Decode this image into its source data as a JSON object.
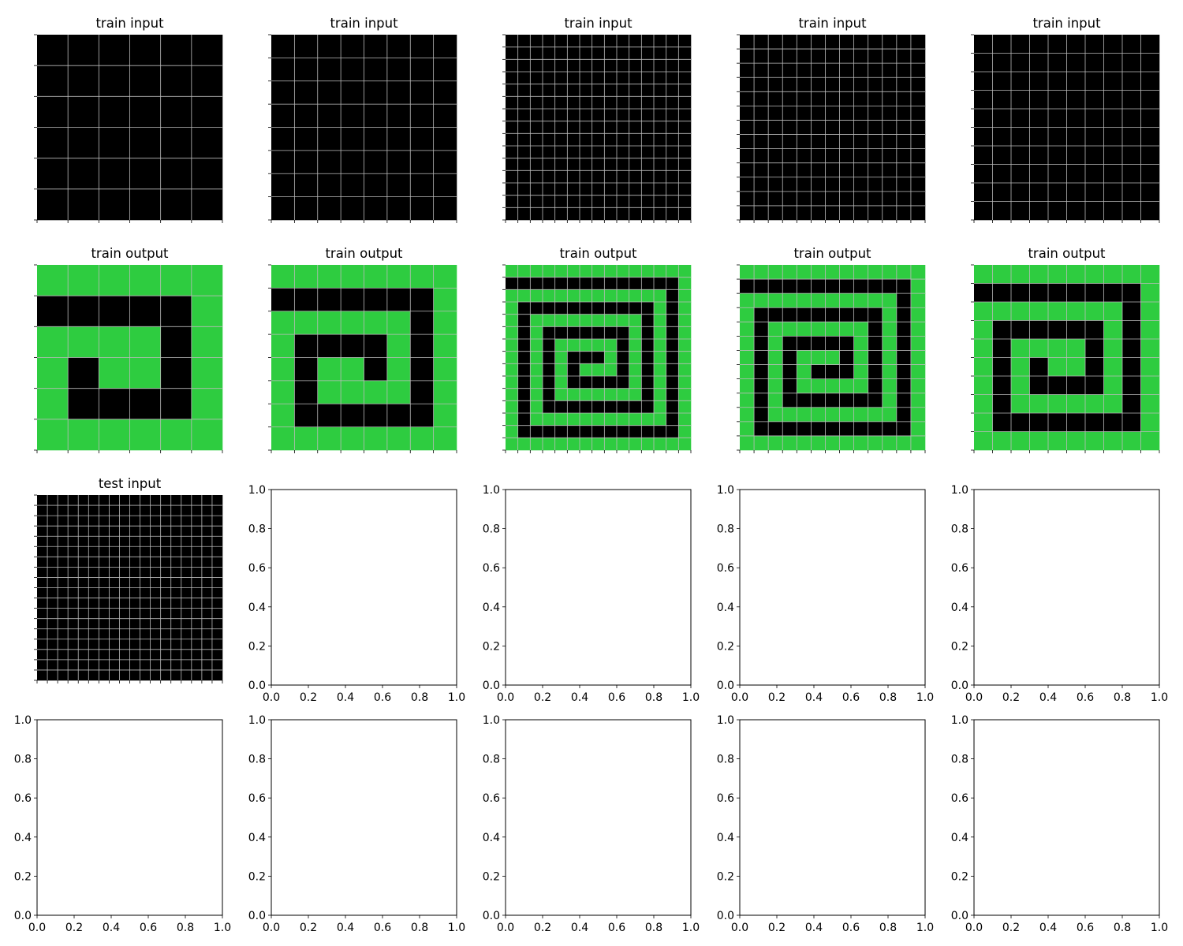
{
  "colors": {
    "black": "#000000",
    "green": "#2ECC40",
    "gridline": "#bbbbbb"
  },
  "chart_data": [
    {
      "type": "heatmap",
      "title": "train input",
      "rows": 6,
      "cols": 6,
      "values": "zeros"
    },
    {
      "type": "heatmap",
      "title": "train input",
      "rows": 8,
      "cols": 8,
      "values": "zeros"
    },
    {
      "type": "heatmap",
      "title": "train input",
      "rows": 15,
      "cols": 15,
      "values": "zeros"
    },
    {
      "type": "heatmap",
      "title": "train input",
      "rows": 13,
      "cols": 13,
      "values": "zeros"
    },
    {
      "type": "heatmap",
      "title": "train input",
      "rows": 10,
      "cols": 10,
      "values": "zeros"
    },
    {
      "type": "heatmap",
      "title": "train output",
      "rows": 6,
      "cols": 6,
      "values": "spiral"
    },
    {
      "type": "heatmap",
      "title": "train output",
      "rows": 8,
      "cols": 8,
      "values": "spiral"
    },
    {
      "type": "heatmap",
      "title": "train output",
      "rows": 15,
      "cols": 15,
      "values": "spiral"
    },
    {
      "type": "heatmap",
      "title": "train output",
      "rows": 13,
      "cols": 13,
      "values": "spiral"
    },
    {
      "type": "heatmap",
      "title": "train output",
      "rows": 10,
      "cols": 10,
      "values": "spiral"
    },
    {
      "type": "heatmap",
      "title": "test input",
      "rows": 18,
      "cols": 18,
      "values": "zeros"
    },
    {
      "type": "empty",
      "xlim": [
        0,
        1
      ],
      "ylim": [
        0,
        1
      ],
      "ticks": [
        "0.0",
        "0.2",
        "0.4",
        "0.6",
        "0.8",
        "1.0"
      ]
    },
    {
      "type": "empty",
      "xlim": [
        0,
        1
      ],
      "ylim": [
        0,
        1
      ],
      "ticks": [
        "0.0",
        "0.2",
        "0.4",
        "0.6",
        "0.8",
        "1.0"
      ]
    },
    {
      "type": "empty",
      "xlim": [
        0,
        1
      ],
      "ylim": [
        0,
        1
      ],
      "ticks": [
        "0.0",
        "0.2",
        "0.4",
        "0.6",
        "0.8",
        "1.0"
      ]
    },
    {
      "type": "empty",
      "xlim": [
        0,
        1
      ],
      "ylim": [
        0,
        1
      ],
      "ticks": [
        "0.0",
        "0.2",
        "0.4",
        "0.6",
        "0.8",
        "1.0"
      ]
    },
    {
      "type": "empty",
      "xlim": [
        0,
        1
      ],
      "ylim": [
        0,
        1
      ],
      "ticks": [
        "0.0",
        "0.2",
        "0.4",
        "0.6",
        "0.8",
        "1.0"
      ]
    },
    {
      "type": "empty",
      "xlim": [
        0,
        1
      ],
      "ylim": [
        0,
        1
      ],
      "ticks": [
        "0.0",
        "0.2",
        "0.4",
        "0.6",
        "0.8",
        "1.0"
      ]
    },
    {
      "type": "empty",
      "xlim": [
        0,
        1
      ],
      "ylim": [
        0,
        1
      ],
      "ticks": [
        "0.0",
        "0.2",
        "0.4",
        "0.6",
        "0.8",
        "1.0"
      ]
    },
    {
      "type": "empty",
      "xlim": [
        0,
        1
      ],
      "ylim": [
        0,
        1
      ],
      "ticks": [
        "0.0",
        "0.2",
        "0.4",
        "0.6",
        "0.8",
        "1.0"
      ]
    },
    {
      "type": "empty",
      "xlim": [
        0,
        1
      ],
      "ylim": [
        0,
        1
      ],
      "ticks": [
        "0.0",
        "0.2",
        "0.4",
        "0.6",
        "0.8",
        "1.0"
      ]
    }
  ]
}
